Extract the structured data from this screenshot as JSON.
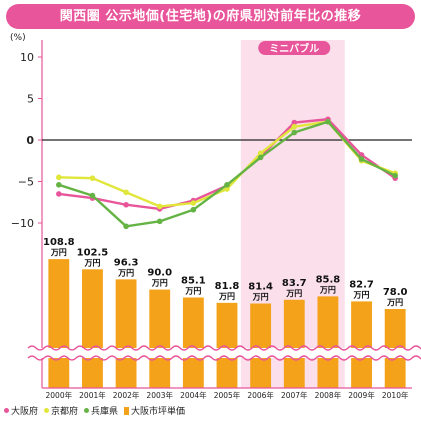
{
  "title": "関西圏 公示地価(住宅地)の府県別対前年比の推移",
  "chart_data": [
    {
      "type": "line",
      "ylabel_unit": "(%)",
      "ylim": [
        -12,
        11
      ],
      "yticks": [
        10,
        5,
        0,
        -5,
        -10
      ],
      "ytick_labels": [
        "10",
        "5",
        "0",
        "−5",
        "−10"
      ],
      "categories": [
        "2000年",
        "2001年",
        "2002年",
        "2003年",
        "2004年",
        "2005年",
        "2006年",
        "2007年",
        "2008年",
        "2009年",
        "2010年"
      ],
      "annotation": "ミニバブル",
      "highlight_range": [
        "2006年",
        "2008年"
      ],
      "series": [
        {
          "name": "大阪府",
          "color": "#e8559a",
          "values": [
            -6.5,
            -7.0,
            -7.8,
            -8.3,
            -7.3,
            -5.5,
            -2.0,
            2.1,
            2.5,
            -1.8,
            -4.6
          ]
        },
        {
          "name": "京都府",
          "color": "#e0e63a",
          "values": [
            -4.5,
            -4.6,
            -6.3,
            -8.0,
            -7.6,
            -5.9,
            -1.6,
            1.6,
            2.2,
            -2.5,
            -4.0
          ]
        },
        {
          "name": "兵庫県",
          "color": "#66b345",
          "values": [
            -5.4,
            -6.7,
            -10.4,
            -9.8,
            -8.4,
            -5.4,
            -2.1,
            0.9,
            2.2,
            -2.3,
            -4.3
          ]
        }
      ]
    },
    {
      "type": "bar",
      "categories": [
        "2000年",
        "2001年",
        "2002年",
        "2003年",
        "2004年",
        "2005年",
        "2006年",
        "2007年",
        "2008年",
        "2009年",
        "2010年"
      ],
      "series": [
        {
          "name": "大阪市坪単価",
          "color": "#f5a21b",
          "unit": "万円",
          "values": [
            108.8,
            102.5,
            96.3,
            90.0,
            85.1,
            81.8,
            81.4,
            83.7,
            85.8,
            82.7,
            78.0
          ],
          "labels": [
            "108.8",
            "102.5",
            "96.3",
            "90.0",
            "85.1",
            "81.8",
            "81.4",
            "83.7",
            "85.8",
            "82.7",
            "78.0"
          ]
        }
      ]
    }
  ],
  "colors": {
    "title_bg": "#e8559a",
    "highlight": "#fbe0ec",
    "axis": "#e8559a",
    "wave": "#e8559a"
  }
}
